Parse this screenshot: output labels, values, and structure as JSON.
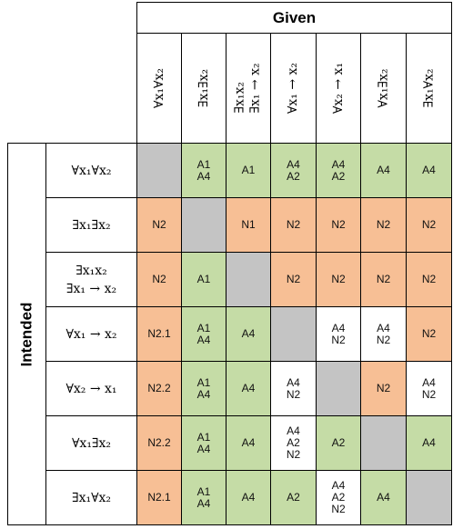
{
  "given_label": "Given",
  "intended_label": "Intended",
  "columns": [
    "∀x₁∀x₂",
    "∃x₁∃x₂",
    "∃x₁x₂\n∃x₁ → x₂",
    "∀x₁ → x₂",
    "∀x₂ → x₁",
    "∀x₁∃x₂",
    "∃x₁∀x₂"
  ],
  "rows": [
    {
      "label": "∀x₁∀x₂",
      "cells": [
        {
          "t": "",
          "c": "gray"
        },
        {
          "t": "A1\nA4",
          "c": "green"
        },
        {
          "t": "A1",
          "c": "green"
        },
        {
          "t": "A4\nA2",
          "c": "green"
        },
        {
          "t": "A4\nA2",
          "c": "green"
        },
        {
          "t": "A4",
          "c": "green"
        },
        {
          "t": "A4",
          "c": "green"
        }
      ]
    },
    {
      "label": "∃x₁∃x₂",
      "cells": [
        {
          "t": "N2",
          "c": "orange"
        },
        {
          "t": "",
          "c": "gray"
        },
        {
          "t": "N1",
          "c": "orange"
        },
        {
          "t": "N2",
          "c": "orange"
        },
        {
          "t": "N2",
          "c": "orange"
        },
        {
          "t": "N2",
          "c": "orange"
        },
        {
          "t": "N2",
          "c": "orange"
        }
      ]
    },
    {
      "label": "∃x₁x₂\n∃x₁ → x₂",
      "cells": [
        {
          "t": "N2",
          "c": "orange"
        },
        {
          "t": "A1",
          "c": "green"
        },
        {
          "t": "",
          "c": "gray"
        },
        {
          "t": "N2",
          "c": "orange"
        },
        {
          "t": "N2",
          "c": "orange"
        },
        {
          "t": "N2",
          "c": "orange"
        },
        {
          "t": "N2",
          "c": "orange"
        }
      ]
    },
    {
      "label": "∀x₁ →  x₂",
      "cells": [
        {
          "t": "N2.1",
          "c": "orange"
        },
        {
          "t": "A1\nA4",
          "c": "green"
        },
        {
          "t": "A4",
          "c": "green"
        },
        {
          "t": "",
          "c": "gray"
        },
        {
          "t": "A4\nN2",
          "c": "white"
        },
        {
          "t": "A4\nN2",
          "c": "white"
        },
        {
          "t": "N2",
          "c": "orange"
        }
      ]
    },
    {
      "label": "∀x₂ → x₁",
      "cells": [
        {
          "t": "N2.2",
          "c": "orange"
        },
        {
          "t": "A1\nA4",
          "c": "green"
        },
        {
          "t": "A4",
          "c": "green"
        },
        {
          "t": "A4\nN2",
          "c": "white"
        },
        {
          "t": "",
          "c": "gray"
        },
        {
          "t": "N2",
          "c": "orange"
        },
        {
          "t": "A4\nN2",
          "c": "white"
        }
      ]
    },
    {
      "label": "∀x₁∃x₂",
      "cells": [
        {
          "t": "N2.2",
          "c": "orange"
        },
        {
          "t": "A1\nA4",
          "c": "green"
        },
        {
          "t": "A4",
          "c": "green"
        },
        {
          "t": "A4\nA2\nN2",
          "c": "white"
        },
        {
          "t": "A2",
          "c": "green"
        },
        {
          "t": "",
          "c": "gray"
        },
        {
          "t": "A4",
          "c": "green"
        }
      ]
    },
    {
      "label": "∃x₁∀x₂",
      "cells": [
        {
          "t": "N2.1",
          "c": "orange"
        },
        {
          "t": "A1\nA4",
          "c": "green"
        },
        {
          "t": "A4",
          "c": "green"
        },
        {
          "t": "A2",
          "c": "green"
        },
        {
          "t": "A4\nA2\nN2",
          "c": "white"
        },
        {
          "t": "A4",
          "c": "green"
        },
        {
          "t": "",
          "c": "gray"
        }
      ]
    }
  ]
}
